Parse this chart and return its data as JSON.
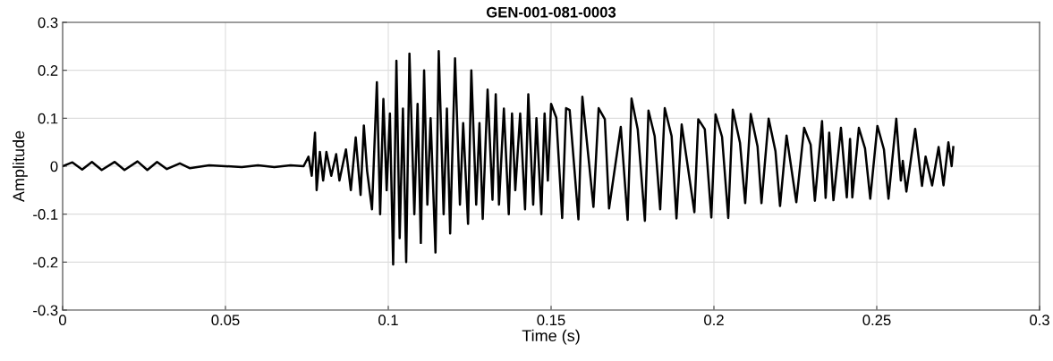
{
  "chart_data": {
    "type": "line",
    "title": "GEN-001-081-0003",
    "xlabel": "Time (s)",
    "ylabel": "Amplitude",
    "xlim": [
      0,
      0.3
    ],
    "ylim": [
      -0.3,
      0.3
    ],
    "xticks": [
      0,
      0.05,
      0.1,
      0.15,
      0.2,
      0.25,
      0.3
    ],
    "yticks": [
      -0.3,
      -0.2,
      -0.1,
      0,
      0.1,
      0.2,
      0.3
    ],
    "grid": true,
    "marker": "none",
    "line_style": "solid",
    "series": [
      {
        "color": "#000000",
        "x": [
          0,
          0.003,
          0.006,
          0.009,
          0.012,
          0.016,
          0.019,
          0.023,
          0.026,
          0.029,
          0.032,
          0.036,
          0.039,
          0.045,
          0.055,
          0.06,
          0.065,
          0.07,
          0.074,
          0.0755,
          0.0765,
          0.0775,
          0.078,
          0.079,
          0.08,
          0.081,
          0.0825,
          0.084,
          0.085,
          0.087,
          0.0885,
          0.09,
          0.0915,
          0.0925,
          0.0935,
          0.095,
          0.0965,
          0.0975,
          0.0985,
          0.0995,
          0.1005,
          0.1015,
          0.1025,
          0.1035,
          0.1045,
          0.1055,
          0.1065,
          0.108,
          0.109,
          0.11,
          0.111,
          0.112,
          0.113,
          0.1145,
          0.1155,
          0.117,
          0.118,
          0.119,
          0.1205,
          0.122,
          0.123,
          0.1245,
          0.1255,
          0.127,
          0.128,
          0.129,
          0.1305,
          0.132,
          0.133,
          0.134,
          0.1355,
          0.137,
          0.138,
          0.139,
          0.1405,
          0.142,
          0.143,
          0.1445,
          0.1455,
          0.147,
          0.148,
          0.149,
          0.15,
          0.1516,
          0.1534,
          0.1546,
          0.1557,
          0.1584,
          0.1596,
          0.163,
          0.1646,
          0.1665,
          0.1678,
          0.1714,
          0.1735,
          0.1747,
          0.1766,
          0.1788,
          0.1799,
          0.1818,
          0.1835,
          0.1849,
          0.187,
          0.1885,
          0.1901,
          0.194,
          0.1952,
          0.1972,
          0.1992,
          0.2005,
          0.2025,
          0.2044,
          0.2058,
          0.208,
          0.2096,
          0.2113,
          0.2134,
          0.2146,
          0.2168,
          0.2189,
          0.2203,
          0.2223,
          0.2253,
          0.2277,
          0.2297,
          0.231,
          0.2332,
          0.2343,
          0.2354,
          0.2367,
          0.239,
          0.2408,
          0.2418,
          0.2425,
          0.2445,
          0.2464,
          0.248,
          0.2502,
          0.2522,
          0.2536,
          0.256,
          0.2574,
          0.258,
          0.2591,
          0.2618,
          0.2639,
          0.265,
          0.267,
          0.269,
          0.2705,
          0.272,
          0.273,
          0.2735
        ],
        "values": [
          0,
          0.008,
          -0.007,
          0.009,
          -0.008,
          0.009,
          -0.008,
          0.01,
          -0.008,
          0.009,
          -0.006,
          0.006,
          -0.004,
          0.002,
          -0.002,
          0.002,
          -0.002,
          0.002,
          0,
          0.02,
          -0.02,
          0.07,
          -0.05,
          0.03,
          -0.03,
          0.03,
          -0.02,
          0.025,
          -0.03,
          0.035,
          -0.05,
          0.06,
          -0.06,
          0.085,
          -0.01,
          -0.09,
          0.175,
          -0.1,
          0.14,
          -0.05,
          0.11,
          -0.205,
          0.22,
          -0.15,
          0.12,
          -0.2,
          0.235,
          -0.1,
          0.13,
          -0.16,
          0.2,
          -0.08,
          0.1,
          -0.18,
          0.24,
          -0.1,
          0.12,
          -0.14,
          0.225,
          -0.08,
          0.09,
          -0.12,
          0.2,
          -0.08,
          0.09,
          -0.11,
          0.16,
          -0.07,
          0.15,
          -0.08,
          0.12,
          -0.1,
          0.11,
          -0.05,
          0.11,
          -0.09,
          0.15,
          -0.08,
          0.1,
          -0.1,
          0.11,
          -0.03,
          0.13,
          0.101,
          -0.108,
          0.121,
          0.117,
          -0.111,
          0.145,
          -0.085,
          0.121,
          0.098,
          -0.088,
          0.082,
          -0.112,
          0.141,
          0.077,
          -0.114,
          0.116,
          0.063,
          -0.09,
          0.121,
          0.063,
          -0.109,
          0.087,
          -0.096,
          0.098,
          0.077,
          -0.107,
          0.108,
          0.061,
          -0.108,
          0.118,
          0.049,
          -0.077,
          0.109,
          0.041,
          -0.077,
          0.099,
          0.031,
          -0.083,
          0.064,
          -0.075,
          0.08,
          0.045,
          -0.072,
          0.094,
          -0.066,
          0.07,
          -0.071,
          0.08,
          -0.065,
          0.057,
          -0.065,
          0.08,
          0.037,
          -0.068,
          0.084,
          0.035,
          -0.068,
          0.099,
          -0.03,
          0.011,
          -0.053,
          0.078,
          -0.041,
          0.02,
          -0.04,
          0.04,
          -0.04,
          0.05,
          0,
          0.04
        ]
      }
    ]
  }
}
